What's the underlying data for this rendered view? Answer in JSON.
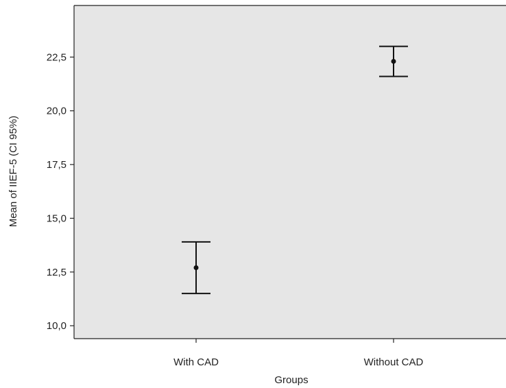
{
  "chart_data": {
    "type": "errorbar",
    "xlabel": "Groups",
    "ylabel": "Mean of IIEF-5 (CI 95%)",
    "categories": [
      "With CAD",
      "Without CAD"
    ],
    "points": [
      {
        "category": "With CAD",
        "mean": 12.7,
        "ci_lower": 11.5,
        "ci_upper": 13.9
      },
      {
        "category": "Without CAD",
        "mean": 22.3,
        "ci_lower": 21.6,
        "ci_upper": 23.0
      }
    ],
    "yticks": [
      "10,0",
      "12,5",
      "15,0",
      "17,5",
      "20,0",
      "22,5"
    ],
    "ytick_values": [
      10.0,
      12.5,
      15.0,
      17.5,
      20.0,
      22.5
    ],
    "ylim": [
      9.4,
      24.9
    ],
    "grid": false,
    "colors": {
      "plot_background": "#e6e6e6",
      "marks": "#111111",
      "frame": "#222222"
    }
  }
}
